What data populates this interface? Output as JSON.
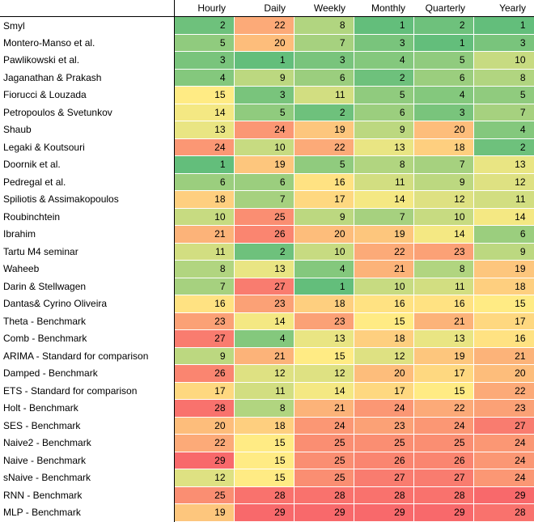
{
  "table": {
    "columns": [
      "Hourly",
      "Daily",
      "Weekly",
      "Monthly",
      "Quarterly",
      "Yearly"
    ],
    "rows": [
      {
        "name": "Smyl",
        "values": [
          2,
          22,
          8,
          1,
          2,
          1
        ]
      },
      {
        "name": "Montero-Manso et al.",
        "values": [
          5,
          20,
          7,
          3,
          1,
          3
        ]
      },
      {
        "name": "Pawlikowski et al.",
        "values": [
          3,
          1,
          3,
          4,
          5,
          10
        ]
      },
      {
        "name": "Jaganathan & Prakash",
        "values": [
          4,
          9,
          6,
          2,
          6,
          8
        ]
      },
      {
        "name": "Fiorucci & Louzada",
        "values": [
          15,
          3,
          11,
          5,
          4,
          5
        ]
      },
      {
        "name": "Petropoulos & Svetunkov",
        "values": [
          14,
          5,
          2,
          6,
          3,
          7
        ]
      },
      {
        "name": "Shaub",
        "values": [
          13,
          24,
          19,
          9,
          20,
          4
        ]
      },
      {
        "name": "Legaki & Koutsouri",
        "values": [
          24,
          10,
          22,
          13,
          18,
          2
        ]
      },
      {
        "name": "Doornik et al.",
        "values": [
          1,
          19,
          5,
          8,
          7,
          13
        ]
      },
      {
        "name": "Pedregal et al.",
        "values": [
          6,
          6,
          16,
          11,
          9,
          12
        ]
      },
      {
        "name": "Spiliotis & Assimakopoulos",
        "values": [
          18,
          7,
          17,
          14,
          12,
          11
        ]
      },
      {
        "name": "Roubinchtein",
        "values": [
          10,
          25,
          9,
          7,
          10,
          14
        ]
      },
      {
        "name": "Ibrahim",
        "values": [
          21,
          26,
          20,
          19,
          14,
          6
        ]
      },
      {
        "name": "Tartu M4 seminar",
        "values": [
          11,
          2,
          10,
          22,
          23,
          9
        ]
      },
      {
        "name": "Waheeb",
        "values": [
          8,
          13,
          4,
          21,
          8,
          19
        ]
      },
      {
        "name": "Darin & Stellwagen",
        "values": [
          7,
          27,
          1,
          10,
          11,
          18
        ]
      },
      {
        "name": "Dantas& Cyrino Oliveira",
        "values": [
          16,
          23,
          18,
          16,
          16,
          15
        ]
      },
      {
        "name": "Theta - Benchmark",
        "values": [
          23,
          14,
          23,
          15,
          21,
          17
        ]
      },
      {
        "name": "Comb - Benchmark",
        "values": [
          27,
          4,
          13,
          18,
          13,
          16
        ]
      },
      {
        "name": "ARIMA - Standard for comparison",
        "values": [
          9,
          21,
          15,
          12,
          19,
          21
        ]
      },
      {
        "name": "Damped - Benchmark",
        "values": [
          26,
          12,
          12,
          20,
          17,
          20
        ]
      },
      {
        "name": "ETS - Standard for comparison",
        "values": [
          17,
          11,
          14,
          17,
          15,
          22
        ]
      },
      {
        "name": "Holt - Benchmark",
        "values": [
          28,
          8,
          21,
          24,
          22,
          23
        ]
      },
      {
        "name": "SES - Benchmark",
        "values": [
          20,
          18,
          24,
          23,
          24,
          27
        ]
      },
      {
        "name": "Naive2 - Benchmark",
        "values": [
          22,
          15,
          25,
          25,
          25,
          24
        ]
      },
      {
        "name": "Naive - Benchmark",
        "values": [
          29,
          15,
          25,
          26,
          26,
          24
        ]
      },
      {
        "name": "sNaive - Benchmark",
        "values": [
          12,
          15,
          25,
          27,
          27,
          24
        ]
      },
      {
        "name": "RNN - Benchmark",
        "values": [
          25,
          28,
          28,
          28,
          28,
          29
        ]
      },
      {
        "name": "MLP - Benchmark",
        "values": [
          19,
          29,
          29,
          29,
          29,
          28
        ]
      }
    ]
  },
  "colors": {
    "best": "#63be7b",
    "middle": "#ffeb84",
    "worst": "#f8696b"
  },
  "value_range": [
    1,
    29
  ]
}
